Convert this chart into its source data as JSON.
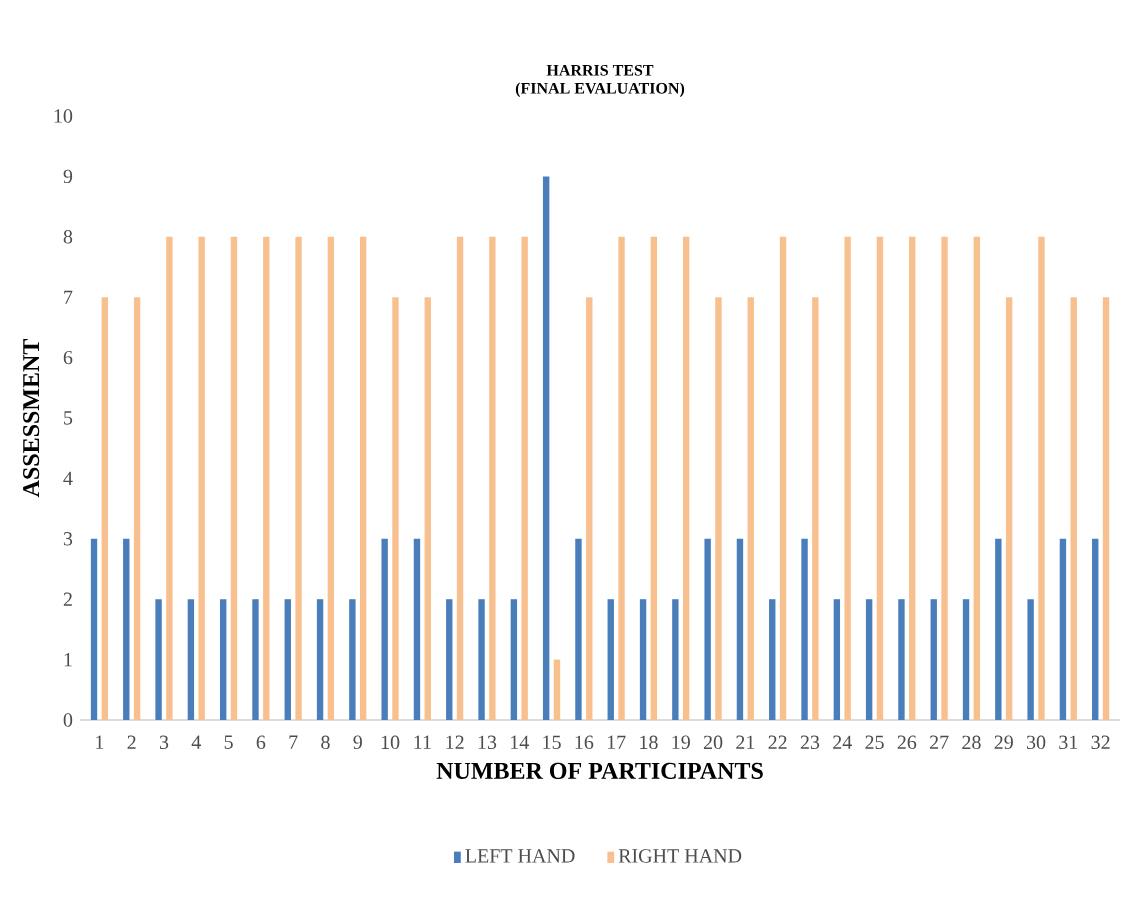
{
  "chart_data": {
    "type": "bar",
    "title": "HARRIS TEST",
    "subtitle": "(FINAL EVALUATION)",
    "xlabel": "NUMBER OF PARTICIPANTS",
    "ylabel": "ASSESSMENT",
    "categories": [
      "1",
      "2",
      "3",
      "4",
      "5",
      "6",
      "7",
      "8",
      "9",
      "10",
      "11",
      "12",
      "13",
      "14",
      "15",
      "16",
      "17",
      "18",
      "19",
      "20",
      "21",
      "22",
      "23",
      "24",
      "25",
      "26",
      "27",
      "28",
      "29",
      "30",
      "31",
      "32"
    ],
    "series": [
      {
        "name": "LEFT HAND",
        "color": "#4a7ebb",
        "values": [
          3,
          3,
          2,
          2,
          2,
          2,
          2,
          2,
          2,
          3,
          3,
          2,
          2,
          2,
          9,
          3,
          2,
          2,
          2,
          3,
          3,
          2,
          3,
          2,
          2,
          2,
          2,
          2,
          3,
          2,
          3,
          3
        ]
      },
      {
        "name": "RIGHT HAND",
        "color": "#f9c08f",
        "values": [
          7,
          7,
          8,
          8,
          8,
          8,
          8,
          8,
          8,
          7,
          7,
          8,
          8,
          8,
          1,
          7,
          8,
          8,
          8,
          7,
          7,
          8,
          7,
          8,
          8,
          8,
          8,
          8,
          7,
          8,
          7,
          7
        ]
      }
    ],
    "ylim": [
      0,
      10
    ],
    "yticks": [
      0,
      1,
      2,
      3,
      4,
      5,
      6,
      7,
      8,
      9,
      10
    ],
    "grid": false,
    "legend": "bottom"
  }
}
